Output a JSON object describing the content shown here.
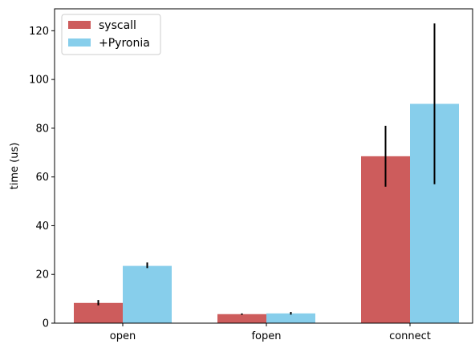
{
  "chart_data": {
    "type": "bar",
    "categories": [
      "open",
      "fopen",
      "connect"
    ],
    "series": [
      {
        "name": "syscall",
        "color": "#cd5c5c",
        "values": [
          8.3,
          3.7,
          68.5
        ],
        "error": [
          [
            7.3,
            9.5
          ],
          [
            3.4,
            4.0
          ],
          [
            56.0,
            81.0
          ]
        ]
      },
      {
        "name": "+Pyronia",
        "color": "#87ceeb",
        "values": [
          23.5,
          4.0,
          90.0
        ],
        "error": [
          [
            22.6,
            24.9
          ],
          [
            3.5,
            4.6
          ],
          [
            57.0,
            123.0
          ]
        ]
      }
    ],
    "title": "",
    "xlabel": "",
    "ylabel": "time (us)",
    "ylim": [
      0,
      129
    ],
    "yticks": [
      0,
      20,
      40,
      60,
      80,
      100,
      120
    ],
    "grid": false,
    "legend_position": "top-left"
  }
}
